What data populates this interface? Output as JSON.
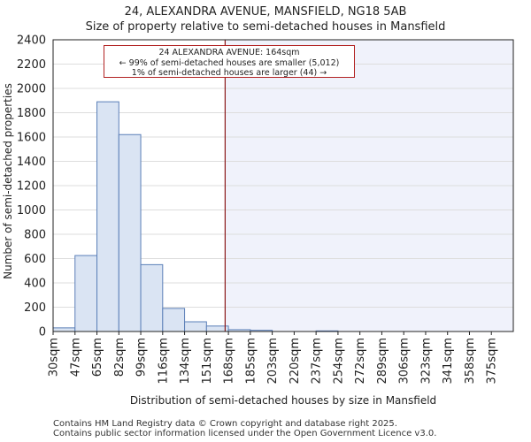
{
  "header": {
    "title": "24, ALEXANDRA AVENUE, MANSFIELD, NG18 5AB",
    "subtitle": "Size of property relative to semi-detached houses in Mansfield"
  },
  "annotation": {
    "line1": "24 ALEXANDRA AVENUE: 164sqm",
    "line2": "← 99% of semi-detached houses are smaller (5,012)",
    "line3": "1% of semi-detached houses are larger (44) →"
  },
  "footer": {
    "line1": "Contains HM Land Registry data © Crown copyright and database right 2025.",
    "line2": "Contains public sector information licensed under the Open Government Licence v3.0."
  },
  "chart_data": {
    "type": "bar",
    "title": "Size of property relative to semi-detached houses in Mansfield",
    "xlabel": "Distribution of semi-detached houses by size in Mansfield",
    "ylabel": "Number of semi-detached properties",
    "categories": [
      "30sqm",
      "47sqm",
      "65sqm",
      "82sqm",
      "99sqm",
      "116sqm",
      "134sqm",
      "151sqm",
      "168sqm",
      "185sqm",
      "203sqm",
      "220sqm",
      "237sqm",
      "254sqm",
      "272sqm",
      "289sqm",
      "306sqm",
      "323sqm",
      "341sqm",
      "358sqm",
      "375sqm"
    ],
    "values": [
      30,
      625,
      1890,
      1620,
      550,
      190,
      80,
      45,
      15,
      10,
      0,
      0,
      5,
      0,
      0,
      0,
      0,
      0,
      0,
      0,
      0
    ],
    "ylim": [
      0,
      2400
    ],
    "yticks": [
      0,
      200,
      400,
      600,
      800,
      1000,
      1200,
      1400,
      1600,
      1800,
      2000,
      2200,
      2400
    ],
    "marker_bin_position": 7.85,
    "colors": {
      "bar_fill": "#dae4f3",
      "bar_stroke": "#5b7fb8",
      "marker": "#8b1a1a",
      "shade": "#f0f2fb",
      "grid": "#dddddd"
    }
  }
}
